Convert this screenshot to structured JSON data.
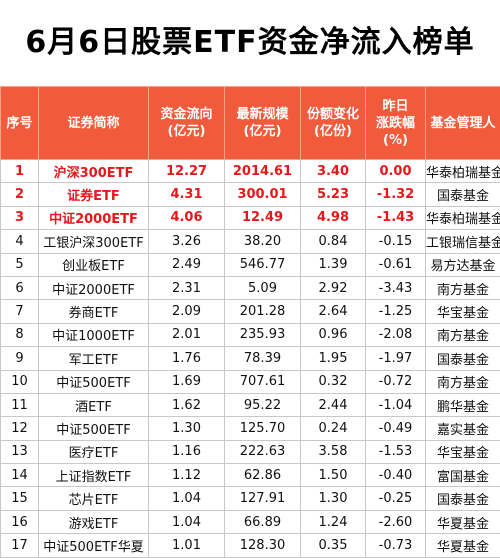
{
  "title": "6月6日股票ETF资金净流入榜单",
  "headers": [
    "序号",
    "证券简称",
    "资金流向\n(亿元)",
    "最新规模\n(亿元)",
    "份额变化\n(亿份)",
    "昨日\n涨跌幅\n(%)",
    "基金管理人"
  ],
  "rows": [
    [
      "1",
      "沪深300ETF",
      "12.27",
      "2014.61",
      "3.40",
      "0.00",
      "华泰柏瑞基金"
    ],
    [
      "2",
      "证券ETF",
      "4.31",
      "300.01",
      "5.23",
      "-1.32",
      "国泰基金"
    ],
    [
      "3",
      "中证2000ETF",
      "4.06",
      "12.49",
      "4.98",
      "-1.43",
      "华泰柏瑞基金"
    ],
    [
      "4",
      "工银沪深300ETF",
      "3.26",
      "38.20",
      "0.84",
      "-0.15",
      "工银瑞信基金"
    ],
    [
      "5",
      "创业板ETF",
      "2.49",
      "546.77",
      "1.39",
      "-0.61",
      "易方达基金"
    ],
    [
      "6",
      "中证2000ETF",
      "2.31",
      "5.09",
      "2.92",
      "-3.43",
      "南方基金"
    ],
    [
      "7",
      "券商ETF",
      "2.09",
      "201.28",
      "2.64",
      "-1.25",
      "华宝基金"
    ],
    [
      "8",
      "中证1000ETF",
      "2.01",
      "235.93",
      "0.96",
      "-2.08",
      "南方基金"
    ],
    [
      "9",
      "军工ETF",
      "1.76",
      "78.39",
      "1.95",
      "-1.97",
      "国泰基金"
    ],
    [
      "10",
      "中证500ETF",
      "1.69",
      "707.61",
      "0.32",
      "-0.72",
      "南方基金"
    ],
    [
      "11",
      "酒ETF",
      "1.62",
      "95.22",
      "2.44",
      "-1.04",
      "鹏华基金"
    ],
    [
      "12",
      "中证500ETF",
      "1.30",
      "125.70",
      "0.24",
      "-0.49",
      "嘉实基金"
    ],
    [
      "13",
      "医疗ETF",
      "1.16",
      "222.63",
      "3.58",
      "-1.53",
      "华宝基金"
    ],
    [
      "14",
      "上证指数ETF",
      "1.12",
      "62.86",
      "1.50",
      "-0.40",
      "富国基金"
    ],
    [
      "15",
      "芯片ETF",
      "1.04",
      "127.91",
      "1.30",
      "-0.25",
      "国泰基金"
    ],
    [
      "16",
      "游戏ETF",
      "1.04",
      "66.89",
      "1.24",
      "-2.60",
      "华夏基金"
    ],
    [
      "17",
      "中证500ETF华夏",
      "1.01",
      "128.30",
      "0.35",
      "-0.73",
      "华夏基金"
    ]
  ],
  "highlight_rows": 3,
  "colors": {
    "header_bg": "#f15a3a",
    "highlight_text": "#e8171c"
  }
}
